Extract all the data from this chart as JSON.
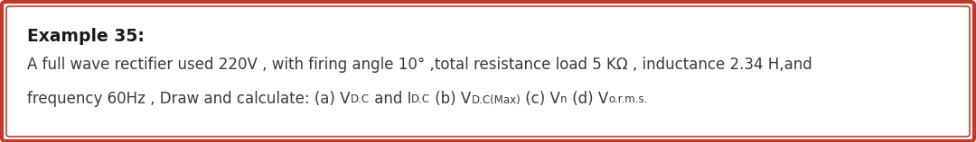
{
  "title": "Example 35:",
  "line1": "A full wave rectifier used 220V , with firing angle 10° ,total resistance load 5 KΩ , inductance 2.34 H,and",
  "line2_prefix": "frequency 60Hz , Draw and calculate: (a) V",
  "line2_parts": [
    {
      "text": "frequency 60Hz , Draw and calculate: (a) V",
      "style": "normal"
    },
    {
      "text": "D.C",
      "style": "subscript"
    },
    {
      "text": " and I",
      "style": "normal"
    },
    {
      "text": "D.C",
      "style": "subscript"
    },
    {
      "text": " (b) V",
      "style": "normal"
    },
    {
      "text": "D.C(Max)",
      "style": "subscript"
    },
    {
      "text": " (c) V",
      "style": "normal"
    },
    {
      "text": "n",
      "style": "subscript"
    },
    {
      "text": " (d) V",
      "style": "normal"
    },
    {
      "text": "o.r.m.s.",
      "style": "subscript"
    }
  ],
  "bg_color": "#ffffff",
  "border_outer_color": "#c0392b",
  "border_inner_color": "#c0392b",
  "text_color": "#3a3a3a",
  "title_color": "#1a1a1a",
  "font_size_title": 13.5,
  "font_size_body": 12.0,
  "font_size_sub": 8.5
}
